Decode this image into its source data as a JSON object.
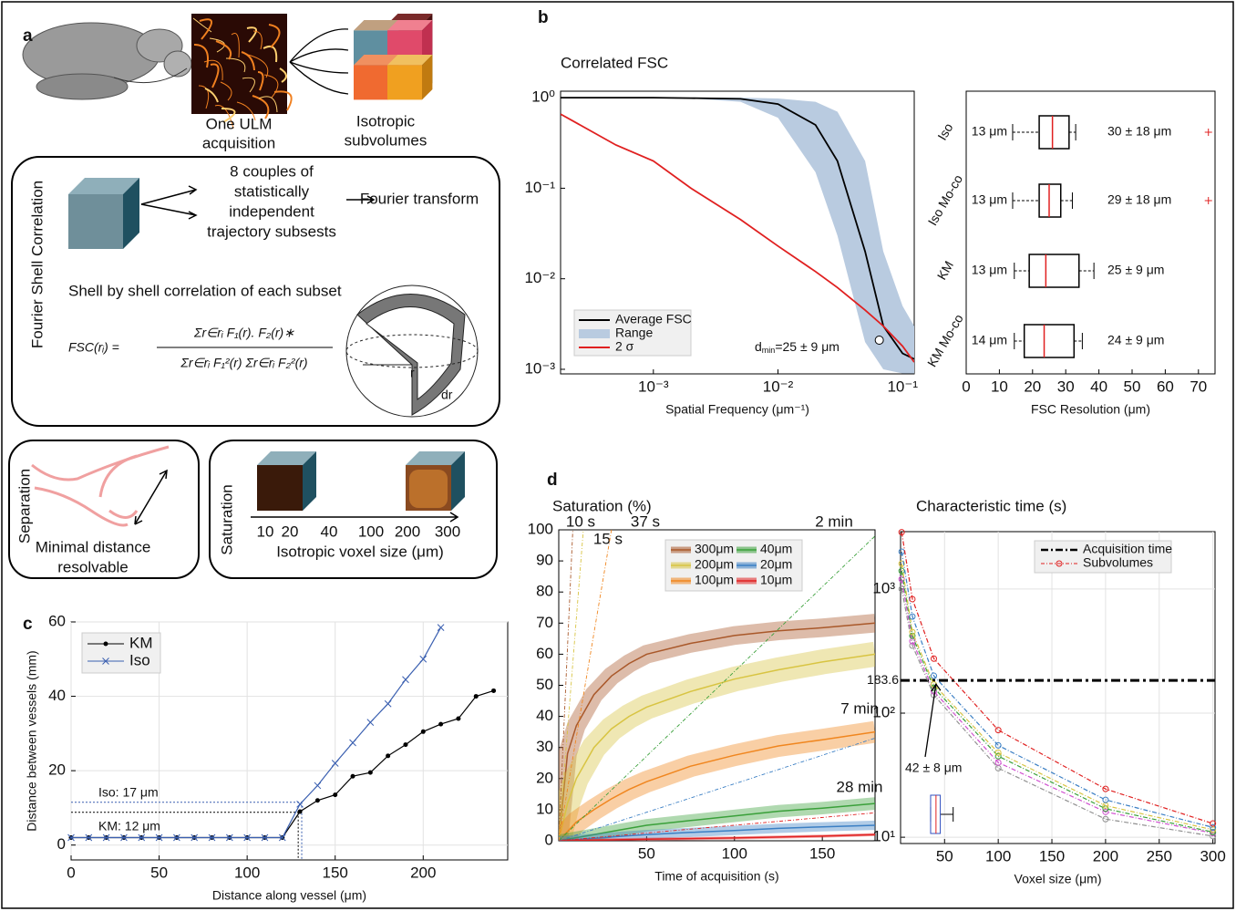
{
  "panel_labels": [
    "a",
    "b",
    "c",
    "d"
  ],
  "panel_a": {
    "acquisition_label": [
      "One ULM",
      "acquisition"
    ],
    "subvolumes_label": [
      "Isotropic",
      "subvolumes"
    ],
    "fsc_title": "Fourier Shell Correlation",
    "couples_text": [
      "8 couples of",
      "statistically",
      "independent",
      "trajectory subsests"
    ],
    "fourier_transform": "Fourier transform",
    "shell_text": "Shell by shell correlation of each subset",
    "formula_lhs": "FSC(rᵢ) =",
    "formula_numerator": "Σr∈rᵢ F₁(r). F₂(r)∗",
    "formula_denominator": "Σr∈rᵢ F₁²(r) Σr∈rᵢ F₂²(r)",
    "shell_r": "r",
    "shell_dr": "dr",
    "separation_title": "Separation",
    "separation_caption": [
      "Minimal distance",
      "resolvable"
    ],
    "saturation_title": "Saturation",
    "voxel_sizes": [
      10,
      20,
      40,
      100,
      200,
      300
    ],
    "voxel_axis_label": "Isotropic voxel size (μm)"
  },
  "chart_data": [
    {
      "type": "line",
      "title": "Correlated FSC",
      "xlabel": "Spatial Frequency (μm⁻¹)",
      "log_x": true,
      "log_y": true,
      "xlim": [
        0.00018,
        0.124
      ],
      "ylim": [
        0.00089,
        1.18
      ],
      "xticks": [
        {
          "value": 0.001,
          "label": "10⁻³"
        },
        {
          "value": 0.01,
          "label": "10⁻²"
        },
        {
          "value": 0.1,
          "label": "10⁻¹"
        }
      ],
      "yticks": [
        {
          "value": 0.001,
          "label": "10⁻³"
        },
        {
          "value": 0.01,
          "label": "10⁻²"
        },
        {
          "value": 0.1,
          "label": "10⁻¹"
        },
        {
          "value": 1,
          "label": "10⁰"
        }
      ],
      "x": [
        0.00018,
        0.0005,
        0.001,
        0.002,
        0.005,
        0.01,
        0.02,
        0.03,
        0.05,
        0.07,
        0.1,
        0.124
      ],
      "series": [
        {
          "name": "Average FSC",
          "color": "#000000",
          "values": [
            1,
            1,
            1,
            0.99,
            0.97,
            0.85,
            0.5,
            0.2,
            0.02,
            0.003,
            0.0015,
            0.0013
          ]
        },
        {
          "name": "Range",
          "color": "#b9cbe0",
          "lower": [
            1,
            1,
            1,
            0.98,
            0.9,
            0.6,
            0.15,
            0.03,
            0.002,
            0.001,
            0.0009,
            0.0009
          ],
          "upper": [
            1,
            1,
            1,
            1,
            1,
            0.98,
            0.9,
            0.7,
            0.2,
            0.02,
            0.005,
            0.003
          ]
        },
        {
          "name": "2 σ",
          "color": "#e02020",
          "values": [
            0.66,
            0.3,
            0.2,
            0.1,
            0.045,
            0.023,
            0.012,
            0.008,
            0.0045,
            0.003,
            0.0018,
            0.0012
          ]
        }
      ],
      "legend": "lower left",
      "annotation": {
        "main": "d",
        "sub": "min",
        "rest": "=25 ± 9 μm"
      },
      "marker": {
        "x": 0.065,
        "y": 0.0021
      }
    },
    {
      "type": "box",
      "xlabel": "FSC Resolution (μm)",
      "xlim": [
        0,
        75
      ],
      "xticks": [
        0,
        10,
        20,
        30,
        40,
        50,
        60,
        70
      ],
      "categories": [
        "Iso",
        "Iso Mo-co",
        "KM",
        "KM Mo-co"
      ],
      "box_color": "#000000",
      "median_color": "#e02020",
      "boxes": [
        {
          "whisker_low": 14,
          "q1": 22,
          "median": 26,
          "q3": 31,
          "whisker_high": 33,
          "outliers": [
            73
          ]
        },
        {
          "whisker_low": 14,
          "q1": 22,
          "median": 25,
          "q3": 28.5,
          "whisker_high": 32,
          "outliers": [
            73
          ]
        },
        {
          "whisker_low": 14.5,
          "q1": 19,
          "median": 24,
          "q3": 34,
          "whisker_high": 38.5,
          "outliers": []
        },
        {
          "whisker_low": 14.5,
          "q1": 17.5,
          "median": 23.5,
          "q3": 32.5,
          "whisker_high": 35,
          "outliers": []
        }
      ],
      "min_labels": [
        "13 μm",
        "13 μm",
        "13 μm",
        "14 μm"
      ],
      "mean_labels": [
        "30 ± 18 μm",
        "29 ± 18 μm",
        "25 ± 9 μm",
        "24 ± 9 μm"
      ]
    },
    {
      "type": "line",
      "xlabel": "Distance along vessel (μm)",
      "ylabel": "Distance between vessels (mm)",
      "xlim": [
        0,
        248
      ],
      "ylim": [
        -4,
        60
      ],
      "xticks": [
        0,
        50,
        100,
        150,
        200
      ],
      "yticks": [
        0,
        20,
        40,
        60
      ],
      "grid": true,
      "legend": "upper left",
      "x": [
        0,
        10,
        20,
        30,
        40,
        50,
        60,
        70,
        80,
        90,
        100,
        110,
        120,
        130,
        140,
        150,
        160,
        170,
        180,
        190,
        200,
        210,
        220,
        230,
        240
      ],
      "series": [
        {
          "name": "KM",
          "color": "#000000",
          "marker": "dot",
          "values": [
            2,
            2,
            2,
            2,
            2,
            2,
            2,
            2,
            2,
            2,
            2,
            2,
            2,
            9,
            12,
            13.5,
            18.5,
            19.5,
            24,
            27,
            30.5,
            32.5,
            34,
            40,
            41.5
          ]
        },
        {
          "name": "Iso",
          "color": "#3a5fb0",
          "marker": "x",
          "values": [
            2,
            2,
            2,
            2,
            2,
            2,
            2,
            2,
            2,
            2,
            2,
            2,
            2,
            11,
            16,
            22,
            27.5,
            33,
            38,
            44.5,
            50,
            58.5,
            null,
            null,
            null
          ]
        }
      ],
      "reference_lines": [
        {
          "label": "Iso: 17 μm",
          "x": 131,
          "y": 11.5,
          "color": "#3a5fb0"
        },
        {
          "label": "KM: 12 μm",
          "x": 129,
          "y": 8.8,
          "color": "#000000"
        }
      ]
    },
    {
      "type": "line",
      "title": "Saturation (%)",
      "xlabel": "Time of acquisition (s)",
      "xlim": [
        0,
        180
      ],
      "ylim": [
        0,
        100
      ],
      "xticks": [
        50,
        100,
        150
      ],
      "yticks": [
        0,
        10,
        20,
        30,
        40,
        50,
        60,
        70,
        80,
        90,
        100
      ],
      "legend": "upper right",
      "x": [
        0,
        5,
        10,
        20,
        30,
        40,
        50,
        75,
        100,
        125,
        150,
        180
      ],
      "series": [
        {
          "name": "300μm",
          "color": "#a9582a",
          "band_halfwidth": 3,
          "values": [
            0,
            28,
            37,
            47,
            53,
            57,
            60,
            63.5,
            66,
            67.5,
            68.5,
            70
          ]
        },
        {
          "name": "200μm",
          "color": "#d8c442",
          "band_halfwidth": 4,
          "values": [
            0,
            12,
            20,
            30,
            36,
            40,
            43,
            48,
            52,
            55,
            57.5,
            60
          ]
        },
        {
          "name": "100μm",
          "color": "#f0861f",
          "band_halfwidth": 3.5,
          "values": [
            0,
            3,
            6,
            10,
            13.5,
            16.5,
            19,
            24,
            27.5,
            30.5,
            32.5,
            35
          ]
        },
        {
          "name": "40μm",
          "color": "#3aa03a",
          "band_halfwidth": 2,
          "values": [
            0,
            0.5,
            1,
            2,
            3,
            4,
            5,
            6.5,
            8,
            9.5,
            10.5,
            12
          ]
        },
        {
          "name": "20μm",
          "color": "#3b7fc4",
          "band_halfwidth": 1.5,
          "values": [
            0,
            0.2,
            0.4,
            0.8,
            1.2,
            1.6,
            2,
            2.7,
            3.3,
            4,
            4.5,
            5
          ]
        },
        {
          "name": "10μm",
          "color": "#e02020",
          "band_halfwidth": 0.5,
          "values": [
            0,
            0,
            0.1,
            0.2,
            0.3,
            0.4,
            0.5,
            0.7,
            0.9,
            1.2,
            1.5,
            2
          ]
        }
      ],
      "extrapolations": [
        {
          "label": "10 s",
          "color": "#a9582a",
          "x": 8,
          "y": 100
        },
        {
          "label": "15 s",
          "color": "#d8c442",
          "x": 14,
          "y": 100
        },
        {
          "label": "37 s",
          "color": "#f0861f",
          "x": 30,
          "y": 100
        },
        {
          "label": "2 min",
          "color": "#3aa03a",
          "x": 180,
          "y": 98
        },
        {
          "label": "7 min",
          "color": "#3b7fc4",
          "x": 180,
          "y": 33
        },
        {
          "label": "28 min",
          "color": "#e02020",
          "x": 180,
          "y": 9
        }
      ]
    },
    {
      "type": "line",
      "title": "Characteristic time (s)",
      "xlabel": "Voxel size (μm)",
      "log_y": true,
      "xlim": [
        9,
        302
      ],
      "ylim": [
        8.9,
        2900
      ],
      "xticks": [
        50,
        100,
        150,
        200,
        250,
        300
      ],
      "yticks": [
        {
          "value": 10,
          "label": "10¹"
        },
        {
          "value": 100,
          "label": "10²"
        },
        {
          "value": 1000,
          "label": "10³"
        }
      ],
      "grid": true,
      "legend": "upper right",
      "x": [
        10,
        20,
        40,
        100,
        200,
        300
      ],
      "series": [
        {
          "name": "Subvolumes",
          "color": "#e02020",
          "values": [
            2870,
            830,
            275,
            73,
            24.5,
            12.9
          ]
        },
        {
          "color": "#3b7fc4",
          "values": [
            2000,
            600,
            200,
            55,
            20,
            12
          ]
        },
        {
          "color": "#d8c442",
          "values": [
            1600,
            450,
            170,
            48,
            18,
            11.5
          ]
        },
        {
          "color": "#3aa03a",
          "values": [
            1400,
            420,
            160,
            45,
            17,
            11
          ]
        },
        {
          "color": "#d050d0",
          "values": [
            1200,
            380,
            150,
            40,
            16,
            10.8
          ]
        },
        {
          "color": "#909090",
          "values": [
            1000,
            350,
            140,
            36,
            14,
            10.2
          ]
        }
      ],
      "reference_line": {
        "name": "Acquisition time",
        "value": 183.6,
        "color": "#000000"
      },
      "annotation": {
        "text": "42 ± 8 μm",
        "x": 42,
        "y": 183.6
      },
      "inset_box": {
        "whisker_low": 37,
        "q1": 37,
        "median": 42,
        "q3": 46,
        "whisker_high": 58
      }
    }
  ]
}
